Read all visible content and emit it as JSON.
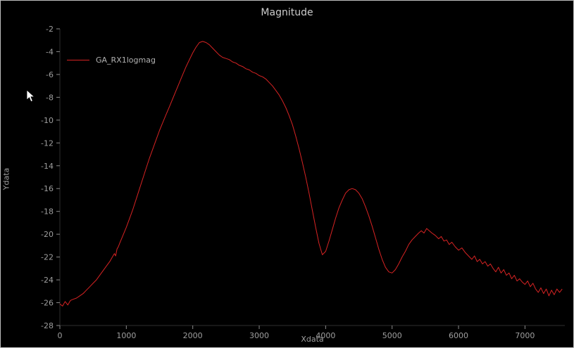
{
  "chart_data": {
    "type": "line",
    "title": "Magnitude",
    "xlabel": "Xdata",
    "ylabel": "Ydata",
    "xlim": [
      0,
      7600
    ],
    "ylim": [
      -28,
      -2
    ],
    "xticks": [
      0,
      1000,
      2000,
      3000,
      4000,
      5000,
      6000,
      7000
    ],
    "yticks": [
      -2,
      -4,
      -6,
      -8,
      -10,
      -12,
      -14,
      -16,
      -18,
      -20,
      -22,
      -24,
      -26,
      -28
    ],
    "grid": false,
    "legend_position": "top-left",
    "line_color": "#d62323",
    "series": [
      {
        "name": "GA_RX1logmag",
        "points": [
          [
            0,
            -26.1
          ],
          [
            40,
            -26.3
          ],
          [
            80,
            -25.9
          ],
          [
            120,
            -26.2
          ],
          [
            160,
            -25.8
          ],
          [
            200,
            -25.7
          ],
          [
            250,
            -25.6
          ],
          [
            300,
            -25.4
          ],
          [
            350,
            -25.2
          ],
          [
            400,
            -24.9
          ],
          [
            450,
            -24.6
          ],
          [
            500,
            -24.3
          ],
          [
            550,
            -24.0
          ],
          [
            600,
            -23.6
          ],
          [
            650,
            -23.2
          ],
          [
            700,
            -22.8
          ],
          [
            750,
            -22.4
          ],
          [
            790,
            -22.0
          ],
          [
            820,
            -21.7
          ],
          [
            840,
            -21.9
          ],
          [
            860,
            -21.3
          ],
          [
            880,
            -21.1
          ],
          [
            900,
            -20.8
          ],
          [
            950,
            -20.1
          ],
          [
            1000,
            -19.4
          ],
          [
            1050,
            -18.6
          ],
          [
            1100,
            -17.8
          ],
          [
            1150,
            -16.9
          ],
          [
            1200,
            -16.0
          ],
          [
            1250,
            -15.1
          ],
          [
            1300,
            -14.2
          ],
          [
            1350,
            -13.3
          ],
          [
            1400,
            -12.5
          ],
          [
            1450,
            -11.7
          ],
          [
            1500,
            -10.9
          ],
          [
            1550,
            -10.2
          ],
          [
            1600,
            -9.5
          ],
          [
            1650,
            -8.8
          ],
          [
            1700,
            -8.1
          ],
          [
            1750,
            -7.4
          ],
          [
            1800,
            -6.7
          ],
          [
            1850,
            -6.0
          ],
          [
            1900,
            -5.3
          ],
          [
            1950,
            -4.7
          ],
          [
            2000,
            -4.1
          ],
          [
            2050,
            -3.6
          ],
          [
            2100,
            -3.2
          ],
          [
            2150,
            -3.1
          ],
          [
            2200,
            -3.2
          ],
          [
            2250,
            -3.4
          ],
          [
            2300,
            -3.7
          ],
          [
            2350,
            -4.0
          ],
          [
            2400,
            -4.3
          ],
          [
            2450,
            -4.5
          ],
          [
            2500,
            -4.6
          ],
          [
            2550,
            -4.7
          ],
          [
            2600,
            -4.9
          ],
          [
            2650,
            -5.0
          ],
          [
            2700,
            -5.2
          ],
          [
            2750,
            -5.3
          ],
          [
            2800,
            -5.5
          ],
          [
            2850,
            -5.6
          ],
          [
            2900,
            -5.8
          ],
          [
            2950,
            -5.9
          ],
          [
            3000,
            -6.1
          ],
          [
            3050,
            -6.2
          ],
          [
            3100,
            -6.4
          ],
          [
            3150,
            -6.7
          ],
          [
            3200,
            -7.0
          ],
          [
            3250,
            -7.4
          ],
          [
            3300,
            -7.8
          ],
          [
            3350,
            -8.3
          ],
          [
            3400,
            -8.9
          ],
          [
            3450,
            -9.6
          ],
          [
            3500,
            -10.4
          ],
          [
            3550,
            -11.4
          ],
          [
            3600,
            -12.5
          ],
          [
            3650,
            -13.7
          ],
          [
            3700,
            -15.0
          ],
          [
            3750,
            -16.4
          ],
          [
            3800,
            -17.9
          ],
          [
            3850,
            -19.4
          ],
          [
            3900,
            -20.8
          ],
          [
            3950,
            -21.8
          ],
          [
            4000,
            -21.5
          ],
          [
            4050,
            -20.6
          ],
          [
            4100,
            -19.6
          ],
          [
            4150,
            -18.6
          ],
          [
            4200,
            -17.7
          ],
          [
            4250,
            -17.0
          ],
          [
            4300,
            -16.4
          ],
          [
            4350,
            -16.1
          ],
          [
            4400,
            -16.0
          ],
          [
            4450,
            -16.1
          ],
          [
            4500,
            -16.4
          ],
          [
            4550,
            -16.9
          ],
          [
            4600,
            -17.6
          ],
          [
            4650,
            -18.4
          ],
          [
            4700,
            -19.3
          ],
          [
            4750,
            -20.3
          ],
          [
            4800,
            -21.3
          ],
          [
            4850,
            -22.2
          ],
          [
            4900,
            -22.9
          ],
          [
            4950,
            -23.3
          ],
          [
            5000,
            -23.4
          ],
          [
            5050,
            -23.1
          ],
          [
            5100,
            -22.6
          ],
          [
            5150,
            -22.0
          ],
          [
            5200,
            -21.5
          ],
          [
            5250,
            -20.9
          ],
          [
            5300,
            -20.5
          ],
          [
            5350,
            -20.2
          ],
          [
            5400,
            -19.9
          ],
          [
            5440,
            -19.7
          ],
          [
            5480,
            -19.9
          ],
          [
            5520,
            -19.5
          ],
          [
            5560,
            -19.7
          ],
          [
            5600,
            -19.9
          ],
          [
            5650,
            -20.1
          ],
          [
            5700,
            -20.4
          ],
          [
            5740,
            -20.2
          ],
          [
            5780,
            -20.6
          ],
          [
            5820,
            -20.5
          ],
          [
            5860,
            -20.9
          ],
          [
            5900,
            -20.7
          ],
          [
            5950,
            -21.1
          ],
          [
            6000,
            -21.4
          ],
          [
            6050,
            -21.2
          ],
          [
            6100,
            -21.6
          ],
          [
            6150,
            -21.9
          ],
          [
            6200,
            -22.2
          ],
          [
            6240,
            -21.9
          ],
          [
            6280,
            -22.4
          ],
          [
            6320,
            -22.2
          ],
          [
            6360,
            -22.6
          ],
          [
            6400,
            -22.4
          ],
          [
            6440,
            -22.8
          ],
          [
            6480,
            -22.6
          ],
          [
            6520,
            -23.0
          ],
          [
            6560,
            -23.3
          ],
          [
            6600,
            -22.9
          ],
          [
            6640,
            -23.4
          ],
          [
            6680,
            -23.1
          ],
          [
            6720,
            -23.6
          ],
          [
            6760,
            -23.4
          ],
          [
            6800,
            -23.9
          ],
          [
            6840,
            -23.6
          ],
          [
            6880,
            -24.1
          ],
          [
            6920,
            -23.9
          ],
          [
            6960,
            -24.2
          ],
          [
            7000,
            -24.4
          ],
          [
            7040,
            -24.1
          ],
          [
            7080,
            -24.6
          ],
          [
            7120,
            -24.3
          ],
          [
            7160,
            -24.8
          ],
          [
            7200,
            -25.1
          ],
          [
            7240,
            -24.7
          ],
          [
            7280,
            -25.2
          ],
          [
            7320,
            -24.8
          ],
          [
            7360,
            -25.4
          ],
          [
            7400,
            -24.9
          ],
          [
            7440,
            -25.3
          ],
          [
            7480,
            -24.8
          ],
          [
            7520,
            -25.1
          ],
          [
            7560,
            -24.8
          ]
        ]
      }
    ]
  }
}
